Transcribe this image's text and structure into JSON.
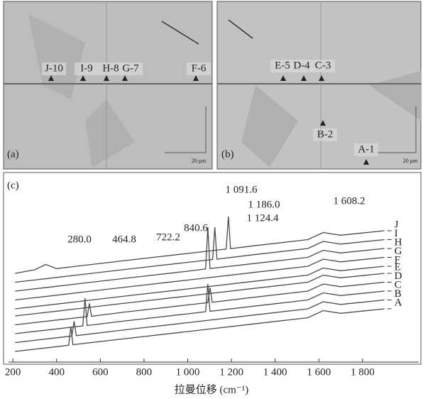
{
  "micrographs": [
    {
      "label": "(a)",
      "markers": [
        "J-10",
        "I-9",
        "H-8",
        "G-7",
        "F-6"
      ],
      "scale_label": "20 μm"
    },
    {
      "label": "(b)",
      "markers": [
        "E-5",
        "D-4",
        "C-3",
        "B-2",
        "A-1"
      ],
      "scale_label": "20 μm"
    }
  ],
  "chart_data": {
    "type": "line",
    "label": "(c)",
    "x_label": "拉曼位移 (cm⁻¹)",
    "xlim": [
      180,
      1950
    ],
    "xticks": [
      200,
      400,
      600,
      800,
      {
        "value": 1000,
        "label": "1 000"
      },
      {
        "value": 1200,
        "label": "1 200"
      },
      {
        "value": 1400,
        "label": "1 400"
      },
      {
        "value": 1600,
        "label": "1 600"
      },
      {
        "value": 1800,
        "label": "1 800"
      }
    ],
    "ylim": [
      0,
      100
    ],
    "annotations": [
      "280.0",
      "464.8",
      "722.2",
      "840.6",
      "1 091.6",
      "1 186.0",
      "1 124.4",
      "1 608.2"
    ],
    "series": [
      {
        "name": "A",
        "color": "#4a4a4a",
        "x": [
          210,
          400,
          455,
          465,
          475,
          700,
          1000,
          1300,
          1550,
          1620,
          1700,
          1900
        ],
        "values": [
          4,
          6.7,
          7.5,
          18,
          7.8,
          11,
          15.2,
          19.5,
          23,
          27,
          25.5,
          28
        ]
      },
      {
        "name": "B",
        "color": "#4a4a4a",
        "x": [
          210,
          400,
          470,
          480,
          490,
          700,
          1000,
          1300,
          1550,
          1620,
          1700,
          1900
        ],
        "values": [
          9,
          11.7,
          12.7,
          21,
          12.9,
          16,
          20.2,
          24.5,
          28,
          32,
          30.5,
          33
        ]
      },
      {
        "name": "C",
        "color": "#4a4a4a",
        "x": [
          210,
          400,
          520,
          530,
          540,
          700,
          1000,
          1082,
          1092,
          1102,
          1300,
          1550,
          1620,
          1700,
          1900
        ],
        "values": [
          14,
          16.7,
          18.4,
          34,
          18.6,
          21,
          25.2,
          26.4,
          42,
          26.6,
          29.5,
          33,
          37,
          35.5,
          38
        ]
      },
      {
        "name": "D",
        "color": "#4a4a4a",
        "x": [
          210,
          400,
          540,
          550,
          560,
          700,
          1000,
          1092,
          1102,
          1112,
          1300,
          1550,
          1620,
          1700,
          1900
        ],
        "values": [
          19,
          21.7,
          23.6,
          31,
          23.8,
          26,
          30.2,
          31.5,
          40,
          31.7,
          34.5,
          38,
          42,
          40.5,
          43
        ]
      },
      {
        "name": "E",
        "color": "#4a4a4a",
        "x": [
          210,
          400,
          700,
          1000,
          1300,
          1550,
          1620,
          1700,
          1900
        ],
        "values": [
          24,
          26.7,
          31,
          35.2,
          39.5,
          43,
          47,
          45.5,
          48
        ]
      },
      {
        "name": "F",
        "color": "#4a4a4a",
        "x": [
          210,
          400,
          700,
          1000,
          1300,
          1550,
          1620,
          1700,
          1900
        ],
        "values": [
          28,
          30.7,
          35,
          39.2,
          43.5,
          47,
          51,
          49.5,
          52
        ]
      },
      {
        "name": "G",
        "color": "#4a4a4a",
        "x": [
          210,
          400,
          700,
          1000,
          1300,
          1550,
          1620,
          1700,
          1900
        ],
        "values": [
          33,
          35.7,
          40,
          44.2,
          48.5,
          52,
          56,
          54.5,
          57
        ]
      },
      {
        "name": "H",
        "color": "#4a4a4a",
        "x": [
          210,
          400,
          700,
          1000,
          1082,
          1092,
          1102,
          1300,
          1550,
          1620,
          1700,
          1900
        ],
        "values": [
          38,
          40.7,
          45,
          49.2,
          50.5,
          74,
          50.7,
          53.5,
          57,
          61,
          59.5,
          62
        ]
      },
      {
        "name": "I",
        "color": "#4a4a4a",
        "x": [
          210,
          400,
          700,
          1000,
          1114,
          1124,
          1134,
          1300,
          1550,
          1620,
          1700,
          1900
        ],
        "values": [
          43,
          45.7,
          50,
          54.2,
          55.8,
          74,
          56,
          58.5,
          62,
          66,
          64.5,
          67
        ]
      },
      {
        "name": "J",
        "color": "#4a4a4a",
        "x": [
          210,
          300,
          350,
          400,
          700,
          1000,
          1176,
          1186,
          1196,
          1300,
          1550,
          1620,
          1700,
          1900
        ],
        "values": [
          48,
          50,
          53,
          50.7,
          55,
          59.2,
          61.7,
          80,
          61.9,
          63.5,
          67,
          71,
          69.5,
          72
        ]
      }
    ]
  }
}
